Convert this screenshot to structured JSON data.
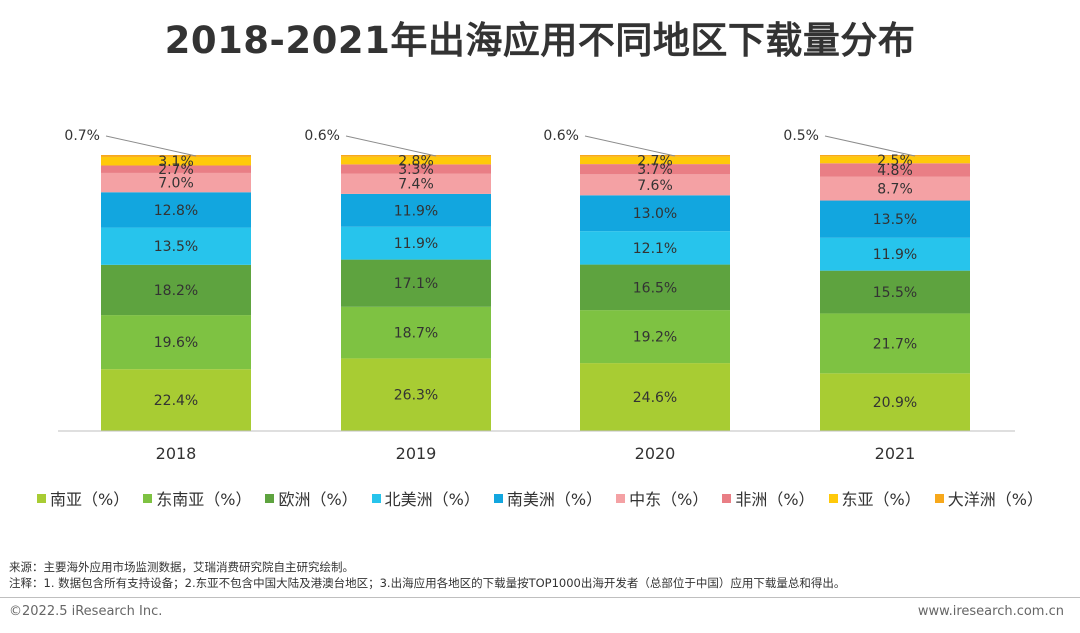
{
  "title": "2018-2021年出海应用不同地区下载量分布",
  "source_note": "来源：主要海外应用市场监测数据，艾瑞消费研究院自主研究绘制。",
  "footnote": "注释：1. 数据包含所有支持设备；2.东亚不包含中国大陆及港澳台地区；3.出海应用各地区的下载量按TOP1000出海开发者（总部位于中国）应用下载量总和得出。",
  "copyright": "©2022.5 iResearch Inc.",
  "website": "www.iresearch.com.cn",
  "colors": {
    "south_asia": "#a8cc33",
    "southeast_asia": "#7ec242",
    "europe": "#5ea33f",
    "north_america": "#27c4ec",
    "south_america": "#12a6df",
    "middle_east": "#f4a1a4",
    "africa": "#e97e85",
    "east_asia": "#ffc90a",
    "oceania": "#f7a81b"
  },
  "chart_data": {
    "type": "bar",
    "stacked": true,
    "percent": true,
    "categories": [
      "2018",
      "2019",
      "2020",
      "2021"
    ],
    "series": [
      {
        "name": "南亚（%）",
        "color_key": "south_asia",
        "values": [
          22.4,
          26.3,
          24.6,
          20.9
        ]
      },
      {
        "name": "东南亚（%）",
        "color_key": "southeast_asia",
        "values": [
          19.6,
          18.7,
          19.2,
          21.7
        ]
      },
      {
        "name": "欧洲（%）",
        "color_key": "europe",
        "values": [
          18.2,
          17.1,
          16.5,
          15.5
        ]
      },
      {
        "name": "北美洲（%）",
        "color_key": "north_america",
        "values": [
          13.5,
          11.9,
          12.1,
          11.9
        ]
      },
      {
        "name": "南美洲（%）",
        "color_key": "south_america",
        "values": [
          12.8,
          11.9,
          13.0,
          13.5
        ]
      },
      {
        "name": "中东（%）",
        "color_key": "middle_east",
        "values": [
          7.0,
          7.4,
          7.6,
          8.7
        ]
      },
      {
        "name": "非洲（%）",
        "color_key": "africa",
        "values": [
          2.7,
          3.3,
          3.7,
          4.8
        ]
      },
      {
        "name": "东亚（%）",
        "color_key": "east_asia",
        "values": [
          3.1,
          2.8,
          2.7,
          2.5
        ]
      },
      {
        "name": "大洋洲（%）",
        "color_key": "oceania",
        "values": [
          0.7,
          0.6,
          0.6,
          0.5
        ]
      }
    ],
    "data_labels": {
      "south_asia": [
        "22.4%",
        "26.3%",
        "24.6%",
        "20.9%"
      ],
      "southeast_asia": [
        "19.6%",
        "18.7%",
        "19.2%",
        "21.7%"
      ],
      "europe": [
        "18.2%",
        "17.1%",
        "16.5%",
        "15.5%"
      ],
      "north_america": [
        "13.5%",
        "11.9%",
        "12.1%",
        "11.9%"
      ],
      "south_america": [
        "12.8%",
        "11.9%",
        "13.0%",
        "13.5%"
      ],
      "middle_east": [
        "7.0%",
        "7.4%",
        "7.6%",
        "8.7%"
      ],
      "africa": [
        "2.7%",
        "3.3%",
        "3.7%",
        "4.8%"
      ],
      "east_asia": [
        "3.1%",
        "2.8%",
        "2.7%",
        "2.5%"
      ],
      "oceania": [
        "0.7%",
        "0.6%",
        "0.6%",
        "0.5%"
      ]
    },
    "ylim": [
      0,
      100
    ],
    "grid": false,
    "legend_position": "bottom"
  }
}
